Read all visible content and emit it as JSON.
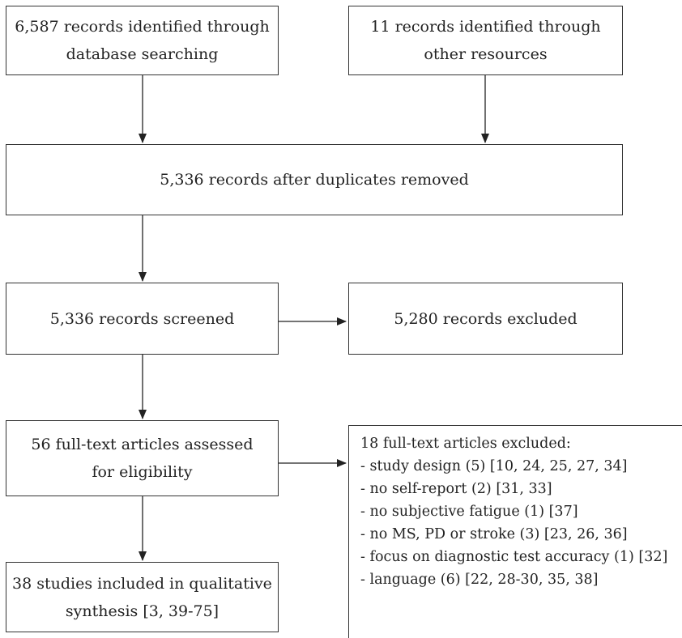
{
  "boxes": {
    "database": [
      "6,587 records identified through",
      "database searching"
    ],
    "other": [
      "11 records identified through",
      "other resources"
    ],
    "duplicates": [
      "5,336 records after duplicates removed"
    ],
    "screened": [
      "5,336 records screened"
    ],
    "excluded": [
      "5,280 records excluded"
    ],
    "fulltext": [
      "56 full-text articles assessed",
      "for eligibility"
    ],
    "included": [
      "38 studies included in qualitative",
      "synthesis [3, 39-75]"
    ]
  },
  "fulltext_excluded": {
    "title": "18 full-text articles excluded:",
    "reasons": [
      "- study design (5) [10, 24, 25, 27, 34]",
      "- no self-report (2) [31, 33]",
      "- no subjective fatigue (1) [37]",
      "- no MS, PD or stroke (3) [23, 26, 36]",
      "- focus on diagnostic test accuracy (1) [32]",
      "- language (6) [22, 28-30, 35, 38]"
    ]
  }
}
